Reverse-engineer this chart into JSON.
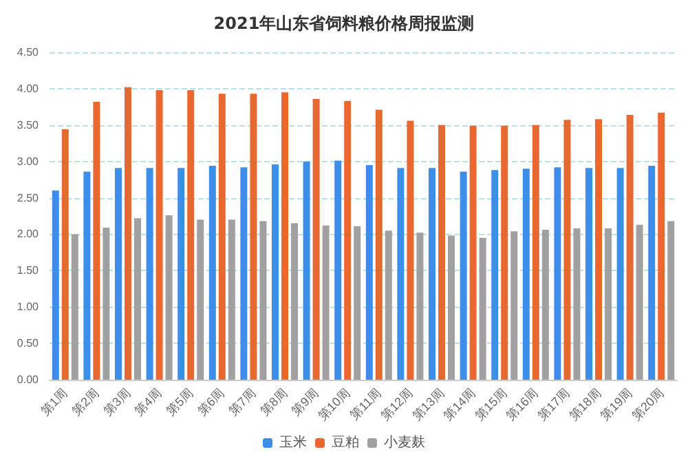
{
  "chart_data": {
    "type": "bar",
    "title": "2021年山东省饲料粮价格周报监测",
    "categories": [
      "第1周",
      "第2周",
      "第3周",
      "第4周",
      "第5周",
      "第6周",
      "第7周",
      "第8周",
      "第9周",
      "第10周",
      "第11周",
      "第12周",
      "第13周",
      "第14周",
      "第15周",
      "第16周",
      "第17周",
      "第18周",
      "第19周",
      "第20周"
    ],
    "series": [
      {
        "name": "玉米",
        "color": "#3d8ee8",
        "values": [
          2.6,
          2.86,
          2.91,
          2.91,
          2.91,
          2.94,
          2.92,
          2.96,
          3.0,
          3.01,
          2.95,
          2.91,
          2.91,
          2.86,
          2.88,
          2.9,
          2.92,
          2.91,
          2.91,
          2.94
        ]
      },
      {
        "name": "豆粕",
        "color": "#e8692f",
        "values": [
          3.44,
          3.82,
          4.02,
          3.98,
          3.98,
          3.93,
          3.93,
          3.95,
          3.86,
          3.83,
          3.71,
          3.56,
          3.5,
          3.49,
          3.49,
          3.5,
          3.57,
          3.58,
          3.64,
          3.67
        ]
      },
      {
        "name": "小麦麸",
        "color": "#a0a0a0",
        "values": [
          2.0,
          2.09,
          2.22,
          2.26,
          2.2,
          2.2,
          2.18,
          2.15,
          2.12,
          2.11,
          2.05,
          2.02,
          1.98,
          1.95,
          2.04,
          2.06,
          2.08,
          2.08,
          2.13,
          2.18
        ]
      }
    ],
    "ylim": [
      0,
      4.5
    ],
    "yticks": [
      {
        "value": 0,
        "label": "0.00"
      },
      {
        "value": 0.5,
        "label": "0.50"
      },
      {
        "value": 1,
        "label": "1.00"
      },
      {
        "value": 1.5,
        "label": "1.50"
      },
      {
        "value": 2,
        "label": "2.00"
      },
      {
        "value": 2.5,
        "label": "2.50"
      },
      {
        "value": 3,
        "label": "3.00"
      },
      {
        "value": 3.5,
        "label": "3.50"
      },
      {
        "value": 4,
        "label": "4.00"
      },
      {
        "value": 4.5,
        "label": "4.50"
      }
    ],
    "grid": "y",
    "legend": "bottom"
  }
}
